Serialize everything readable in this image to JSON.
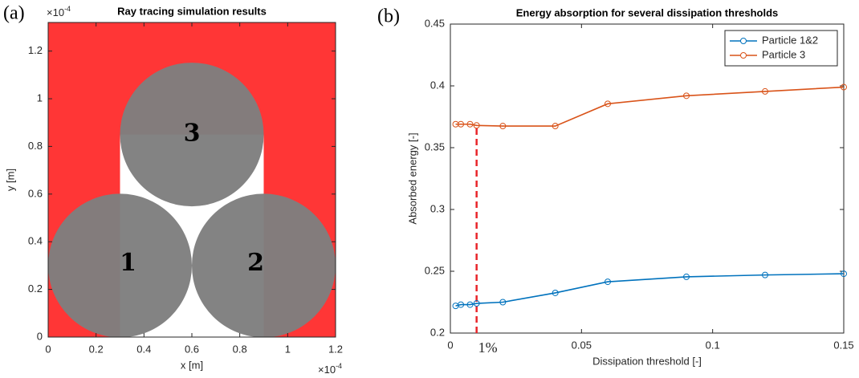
{
  "chart_data": [
    {
      "type": "circles",
      "panel": "(a)",
      "title": "Ray tracing simulation results",
      "xlabel": "x [m]",
      "ylabel": "y [m]",
      "x_scale": {
        "base": "×10",
        "power": "-4"
      },
      "y_scale": {
        "base": "×10",
        "power": "-4"
      },
      "xlim": [
        0,
        1.2
      ],
      "ylim": [
        0,
        1.32
      ],
      "xticks": [
        0,
        0.2,
        0.4,
        0.6,
        0.8,
        1,
        1.2
      ],
      "yticks": [
        0,
        0.2,
        0.4,
        0.6,
        0.8,
        1,
        1.2
      ],
      "color": "#ff2b2b",
      "circle_color": "#7f7f7f",
      "circles": [
        {
          "label": "1",
          "x": 0.3,
          "y": 0.3,
          "r": 0.3
        },
        {
          "label": "2",
          "x": 0.9,
          "y": 0.3,
          "r": 0.3
        },
        {
          "label": "3",
          "x": 0.6,
          "y": 0.85,
          "r": 0.3
        }
      ]
    },
    {
      "type": "line",
      "panel": "(b)",
      "title": "Energy absorption for several dissipation thresholds",
      "xlabel": "Dissipation threshold [-]",
      "ylabel": "Absorbed energy [-]",
      "xlim": [
        0,
        0.15
      ],
      "ylim": [
        0.2,
        0.45
      ],
      "xticks": [
        0,
        0.05,
        0.1,
        0.15
      ],
      "yticks": [
        0.2,
        0.25,
        0.3,
        0.35,
        0.4,
        0.45
      ],
      "x": [
        0.002,
        0.004,
        0.0075,
        0.01,
        0.02,
        0.04,
        0.06,
        0.09,
        0.12,
        0.15
      ],
      "series": [
        {
          "name": "Particle 1&2",
          "color": "#0072bd",
          "values": [
            0.222,
            0.223,
            0.223,
            0.224,
            0.225,
            0.2325,
            0.2415,
            0.2455,
            0.247,
            0.248
          ]
        },
        {
          "name": "Particle 3",
          "color": "#d95319",
          "values": [
            0.369,
            0.369,
            0.369,
            0.368,
            0.3675,
            0.3675,
            0.3855,
            0.392,
            0.3955,
            0.399
          ]
        }
      ],
      "legend": "top-right",
      "annotations": [
        {
          "x": 0.01,
          "label": "1%",
          "color": "#e8252a"
        }
      ]
    }
  ]
}
